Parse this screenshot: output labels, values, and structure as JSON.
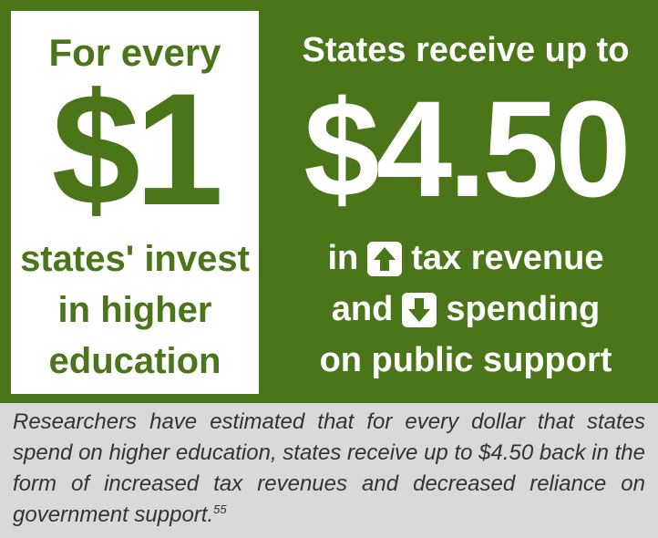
{
  "left": {
    "top": "For every",
    "amount": "$1",
    "lines": [
      "states' invest",
      "in higher",
      "education"
    ]
  },
  "right": {
    "top": "States receive up to",
    "amount": "$4.50",
    "line1": {
      "before": "in",
      "after": "tax revenue"
    },
    "line2": {
      "before": "and",
      "after": "spending"
    },
    "line3": "on public support"
  },
  "caption": {
    "text": "Researchers have estimated that for every dollar that states spend on higher education, states receive up to $4.50 back in the form of increased tax revenues and decreased reliance on government support.",
    "footnote": "55"
  }
}
